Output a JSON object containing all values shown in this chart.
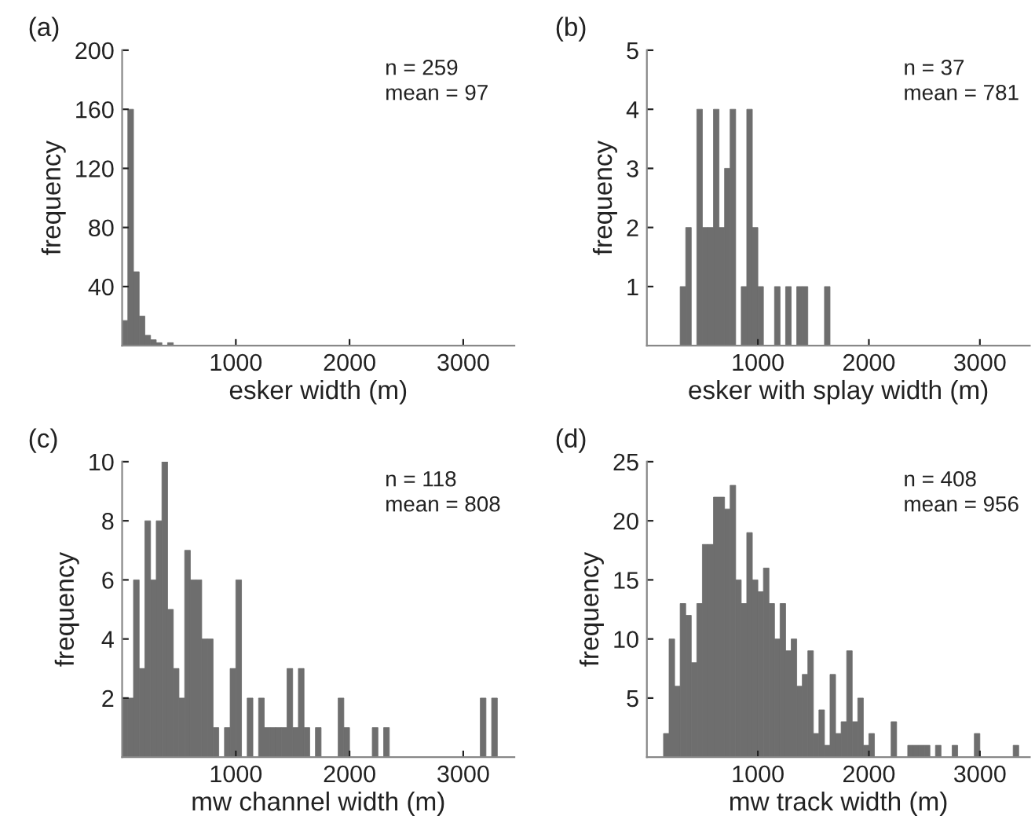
{
  "chart_data": [
    {
      "type": "histogram",
      "title": "(a)",
      "xlabel": "esker width (m)",
      "ylabel": "frequency",
      "color": "#6e6e6e",
      "bins": [
        0,
        50,
        100,
        150,
        200,
        250,
        300,
        350,
        400,
        450
      ],
      "values": [
        17,
        160,
        50,
        20,
        7,
        4,
        2,
        0,
        2
      ],
      "xlim": [
        0,
        3450
      ],
      "ylim": [
        0,
        200
      ],
      "xticks": [
        1000,
        2000,
        3000
      ],
      "yticks": [
        40,
        80,
        120,
        160,
        200
      ],
      "grid": false,
      "annotations": [
        "n = 259",
        "mean = 97"
      ]
    },
    {
      "type": "histogram",
      "title": "(b)",
      "xlabel": "esker with splay width (m)",
      "ylabel": "frequency",
      "color": "#6e6e6e",
      "bins": [
        300,
        350,
        400,
        450,
        500,
        550,
        600,
        650,
        700,
        750,
        800,
        850,
        900,
        950,
        1000,
        1050,
        1100,
        1150,
        1200,
        1250,
        1300,
        1350,
        1400,
        1450,
        1500,
        1550,
        1600,
        1650
      ],
      "values": [
        1,
        2,
        0,
        4,
        2,
        2,
        4,
        2,
        3,
        4,
        0,
        1,
        4,
        2,
        1,
        0,
        0,
        1,
        0,
        1,
        0,
        1,
        1,
        0,
        0,
        0,
        1
      ],
      "xlim": [
        0,
        3450
      ],
      "ylim": [
        0,
        5
      ],
      "xticks": [
        1000,
        2000,
        3000
      ],
      "yticks": [
        1,
        2,
        3,
        4,
        5
      ],
      "grid": false,
      "annotations": [
        "n = 37",
        "mean = 781"
      ]
    },
    {
      "type": "histogram",
      "title": "(c)",
      "xlabel": "mw channel width (m)",
      "ylabel": "frequency",
      "color": "#6e6e6e",
      "bins": [
        0,
        50,
        100,
        150,
        200,
        250,
        300,
        350,
        400,
        450,
        500,
        550,
        600,
        650,
        700,
        750,
        800,
        850,
        900,
        950,
        1000,
        1050,
        1100,
        1150,
        1200,
        1250,
        1300,
        1350,
        1400,
        1450,
        1500,
        1550,
        1600,
        1650,
        1700,
        1750,
        1800,
        1850,
        1900,
        1950,
        2000,
        2050,
        2100,
        2150,
        2200,
        2250,
        2300,
        2350,
        2400,
        2450,
        2500,
        2550,
        2600,
        2650,
        2700,
        2750,
        2800,
        2850,
        2900,
        2950,
        3000,
        3050,
        3100,
        3150,
        3200,
        3250,
        3300
      ],
      "values": [
        2,
        2,
        6,
        3,
        8,
        6,
        8,
        10,
        5,
        3,
        2,
        7,
        6,
        6,
        4,
        4,
        1,
        0,
        1,
        3,
        6,
        0,
        2,
        0,
        2,
        1,
        1,
        1,
        1,
        3,
        1,
        3,
        1,
        0,
        1,
        0,
        0,
        0,
        2,
        1,
        0,
        0,
        0,
        0,
        1,
        0,
        1,
        0,
        0,
        0,
        0,
        0,
        0,
        0,
        0,
        0,
        0,
        0,
        0,
        0,
        0,
        0,
        0,
        2,
        0,
        2
      ],
      "xlim": [
        0,
        3450
      ],
      "ylim": [
        0,
        10
      ],
      "xticks": [
        1000,
        2000,
        3000
      ],
      "yticks": [
        2,
        4,
        6,
        8,
        10
      ],
      "grid": false,
      "annotations": [
        "n = 118",
        "mean = 808"
      ]
    },
    {
      "type": "histogram",
      "title": "(d)",
      "xlabel": "mw track width (m)",
      "ylabel": "frequency",
      "color": "#6e6e6e",
      "bins": [
        150,
        200,
        250,
        300,
        350,
        400,
        450,
        500,
        550,
        600,
        650,
        700,
        750,
        800,
        850,
        900,
        950,
        1000,
        1050,
        1100,
        1150,
        1200,
        1250,
        1300,
        1350,
        1400,
        1450,
        1500,
        1550,
        1600,
        1650,
        1700,
        1750,
        1800,
        1850,
        1900,
        1950,
        2000,
        2050,
        2100,
        2150,
        2200,
        2250,
        2300,
        2350,
        2400,
        2450,
        2500,
        2550,
        2600,
        2650,
        2700,
        2750,
        2800,
        2850,
        2900,
        2950,
        3000,
        3050,
        3100,
        3150,
        3200,
        3250,
        3300,
        3350
      ],
      "values": [
        2,
        10,
        6,
        13,
        12,
        8,
        13,
        18,
        18,
        22,
        22,
        21,
        23,
        15,
        13,
        19,
        15,
        14,
        16,
        13,
        10,
        13,
        9,
        10,
        6,
        7,
        9,
        2,
        4,
        1,
        7,
        2,
        3,
        9,
        3,
        5,
        1,
        2,
        0,
        0,
        0,
        3,
        0,
        0,
        1,
        1,
        1,
        1,
        0,
        1,
        0,
        0,
        1,
        0,
        0,
        0,
        2,
        0,
        0,
        0,
        0,
        0,
        0,
        1
      ],
      "xlim": [
        0,
        3450
      ],
      "ylim": [
        0,
        25
      ],
      "xticks": [
        1000,
        2000,
        3000
      ],
      "yticks": [
        5,
        10,
        15,
        20,
        25
      ],
      "grid": false,
      "annotations": [
        "n = 408",
        "mean = 956"
      ]
    }
  ]
}
